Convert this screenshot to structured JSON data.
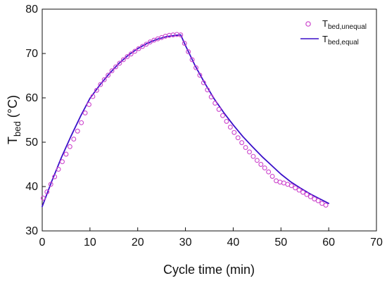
{
  "chart_data": {
    "type": "line",
    "title": "",
    "xlabel": "Cycle time (min)",
    "ylabel": {
      "main": "T",
      "sub": "bed",
      "unit": " (°C)"
    },
    "xlim": [
      0,
      70
    ],
    "ylim": [
      30,
      80
    ],
    "xticks": [
      0,
      10,
      20,
      30,
      40,
      50,
      60,
      70
    ],
    "yticks": [
      30,
      40,
      50,
      60,
      70,
      80
    ],
    "grid": false,
    "legend_position": "top-right",
    "series": [
      {
        "name": {
          "main": "T",
          "sub": "bed,unequal"
        },
        "kind": "scatter",
        "marker": "open-circle",
        "color": "#cc44cc",
        "x": [
          0.2,
          1.0,
          1.8,
          2.6,
          3.4,
          4.2,
          5.0,
          5.8,
          6.6,
          7.4,
          8.2,
          9.0,
          9.8,
          10.6,
          11.4,
          12.2,
          13.0,
          13.8,
          14.6,
          15.4,
          16.2,
          17.0,
          17.8,
          18.6,
          19.4,
          20.2,
          21.0,
          21.8,
          22.6,
          23.4,
          24.2,
          25.0,
          25.8,
          26.6,
          27.4,
          28.2,
          29.0,
          29.8,
          30.6,
          31.4,
          32.2,
          33.0,
          33.8,
          34.6,
          35.4,
          36.2,
          37.0,
          37.8,
          38.6,
          39.4,
          40.2,
          41.0,
          41.8,
          42.6,
          43.4,
          44.2,
          45.0,
          45.8,
          46.6,
          47.4,
          48.2,
          49.0,
          49.8,
          50.6,
          51.4,
          52.2,
          53.0,
          53.8,
          54.6,
          55.4,
          56.2,
          57.0,
          57.8,
          58.6,
          59.4
        ],
        "y": [
          37.4,
          38.8,
          40.5,
          42.2,
          43.9,
          45.6,
          47.3,
          49.0,
          50.7,
          52.5,
          54.4,
          56.6,
          58.5,
          60.3,
          61.7,
          63.0,
          64.1,
          65.1,
          66.1,
          67.0,
          67.8,
          68.6,
          69.3,
          69.9,
          70.5,
          71.1,
          71.6,
          72.1,
          72.6,
          73.0,
          73.3,
          73.6,
          73.9,
          74.1,
          74.2,
          74.3,
          74.2,
          72.3,
          70.4,
          68.6,
          66.8,
          65.1,
          63.4,
          61.8,
          60.2,
          58.8,
          57.4,
          56.0,
          54.7,
          53.4,
          52.2,
          51.0,
          49.9,
          48.8,
          47.8,
          46.8,
          45.9,
          45.0,
          44.2,
          43.3,
          42.3,
          41.3,
          41.0,
          40.8,
          40.5,
          40.2,
          39.7,
          39.2,
          38.7,
          38.2,
          37.7,
          37.2,
          36.8,
          36.2,
          35.8
        ]
      },
      {
        "name": {
          "main": "T",
          "sub": "bed,equal"
        },
        "kind": "line",
        "color": "#3a0fc9",
        "x": [
          0,
          2,
          4,
          6,
          8,
          10,
          12,
          14,
          16,
          18,
          20,
          22,
          24,
          26,
          28,
          29,
          30,
          32,
          34,
          36,
          38,
          40,
          42,
          44,
          46,
          48,
          50,
          52,
          54,
          56,
          58,
          60
        ],
        "y": [
          35.5,
          41.2,
          46.5,
          51.3,
          55.8,
          59.9,
          62.8,
          65.4,
          67.7,
          69.6,
          71.1,
          72.3,
          73.2,
          73.8,
          74.1,
          74.2,
          71.8,
          67.3,
          63.4,
          59.8,
          56.7,
          53.9,
          51.3,
          49.0,
          46.8,
          44.8,
          42.8,
          41.1,
          39.7,
          38.4,
          37.3,
          36.2
        ]
      }
    ]
  }
}
